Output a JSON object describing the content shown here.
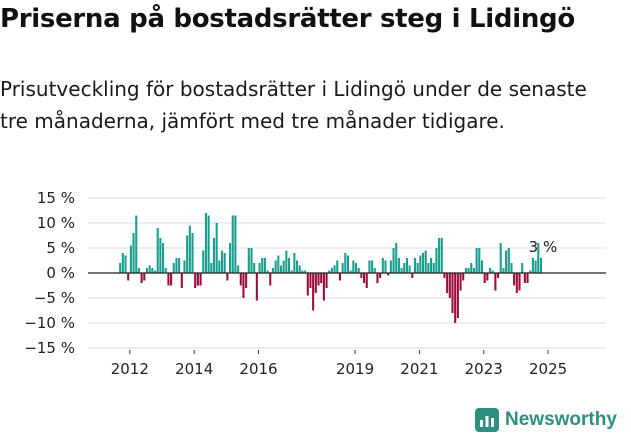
{
  "title": "Priserna på bostadsrätter steg i Lidingö",
  "subtitle": "Prisutveckling för bostadsrätter i Lidingö under de senaste tre månaderna, jämfört med tre månader tidigare.",
  "brand": "Newsworthy",
  "colors": {
    "positive": "#1a9e8f",
    "negative": "#9b0d3f",
    "grid": "#dddddd",
    "brand": "#2e8f80"
  },
  "chart_data": {
    "type": "bar",
    "title": "Priserna på bostadsrätter steg i Lidingö",
    "xlabel": "",
    "ylabel": "",
    "x_start": 2011.7,
    "x_step": 0.0833,
    "xlim": [
      2010.7,
      2026.8
    ],
    "ylim": [
      -15,
      15
    ],
    "yticks": [
      15,
      10,
      5,
      0,
      -5,
      -10,
      -15
    ],
    "ytick_labels": [
      "15 %",
      "10 %",
      "5 %",
      "0 %",
      "−5 %",
      "−10 %",
      "−15 %"
    ],
    "xticks": [
      2012,
      2014,
      2016,
      2019,
      2021,
      2023,
      2025
    ],
    "xtick_labels": [
      "2012",
      "2014",
      "2016",
      "2019",
      "2021",
      "2023",
      "2025"
    ],
    "values": [
      2,
      4,
      3.5,
      -1.5,
      5.5,
      8,
      11.5,
      1,
      -2,
      -1.5,
      1,
      1.5,
      1,
      0.5,
      9,
      7,
      6,
      1,
      -2.5,
      -2.5,
      2,
      3,
      3,
      -3,
      2.5,
      7.5,
      9.5,
      8,
      -3,
      -2.5,
      -2.5,
      4.5,
      12,
      11.5,
      2,
      7,
      10,
      2.5,
      4.5,
      4,
      -1.5,
      6,
      11.5,
      11.5,
      1.5,
      -2.5,
      -5,
      -3,
      5,
      5,
      2,
      -5.5,
      2,
      3,
      3,
      0.5,
      -2.5,
      1,
      2.5,
      3.5,
      1.5,
      2.5,
      4.5,
      3,
      0.5,
      4,
      2.5,
      1.5,
      0.5,
      0.5,
      -4.5,
      -3,
      -7.5,
      -4,
      -2.5,
      -2,
      -5.5,
      -3,
      0.5,
      1,
      1.5,
      2.5,
      -1.5,
      2,
      4,
      3.5,
      0.5,
      2.5,
      2,
      1,
      -1,
      -2,
      -3,
      2.5,
      2.5,
      1,
      -2,
      -1,
      3,
      2.5,
      -0.5,
      2.5,
      5,
      6,
      3,
      1,
      2,
      3,
      1.5,
      -1,
      3,
      2,
      3.5,
      4,
      4.5,
      2,
      3,
      2,
      5,
      7,
      7,
      -1,
      -4,
      -5,
      -8,
      -10,
      -9,
      -3.5,
      -1.5,
      1,
      1,
      2,
      1,
      5,
      5,
      2.5,
      -2,
      -1.5,
      1,
      0.5,
      -3.5,
      -1,
      6,
      1,
      4.5,
      5,
      2,
      -2.5,
      -4,
      -3.5,
      2,
      -2,
      -2,
      0.5,
      3,
      2.5,
      6,
      3
    ],
    "annotation": "3 %"
  }
}
